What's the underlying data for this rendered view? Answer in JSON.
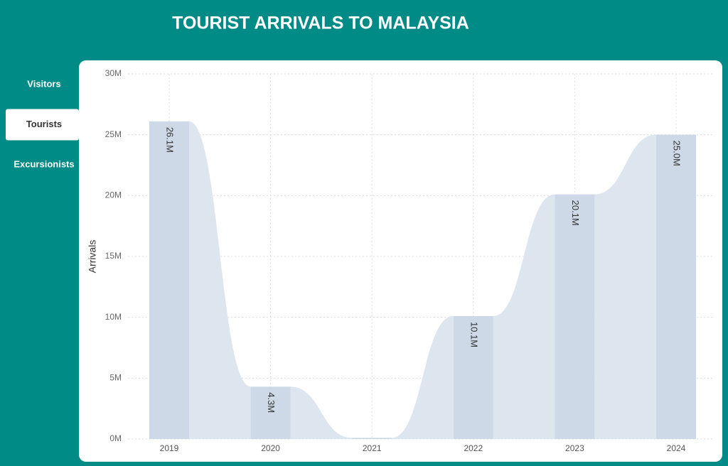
{
  "header": {
    "title": "TOURIST ARRIVALS TO MALAYSIA"
  },
  "nav": {
    "items": [
      "Visitors",
      "Tourists",
      "Excursionists"
    ],
    "selected": 1
  },
  "chart_data": {
    "type": "ribbon",
    "y_label": "Arrivals",
    "categories": [
      "2019",
      "2020",
      "2021",
      "2022",
      "2023",
      "2024"
    ],
    "values": [
      26.1,
      4.3,
      0.1,
      10.1,
      20.1,
      25.0
    ],
    "value_labels": [
      "26.1M",
      "4.3M",
      null,
      "10.1M",
      "20.1M",
      "25.0M"
    ],
    "ylim": [
      0,
      30
    ],
    "yticks": [
      {
        "value": 0,
        "label": "0M"
      },
      {
        "value": 5,
        "label": "5M"
      },
      {
        "value": 10,
        "label": "10M"
      },
      {
        "value": 15,
        "label": "15M"
      },
      {
        "value": 20,
        "label": "20M"
      },
      {
        "value": 25,
        "label": "25M"
      },
      {
        "value": 30,
        "label": "30M"
      }
    ],
    "color": "#cdd9e7",
    "ribbon_color": "#dde5ef",
    "grid": true
  }
}
